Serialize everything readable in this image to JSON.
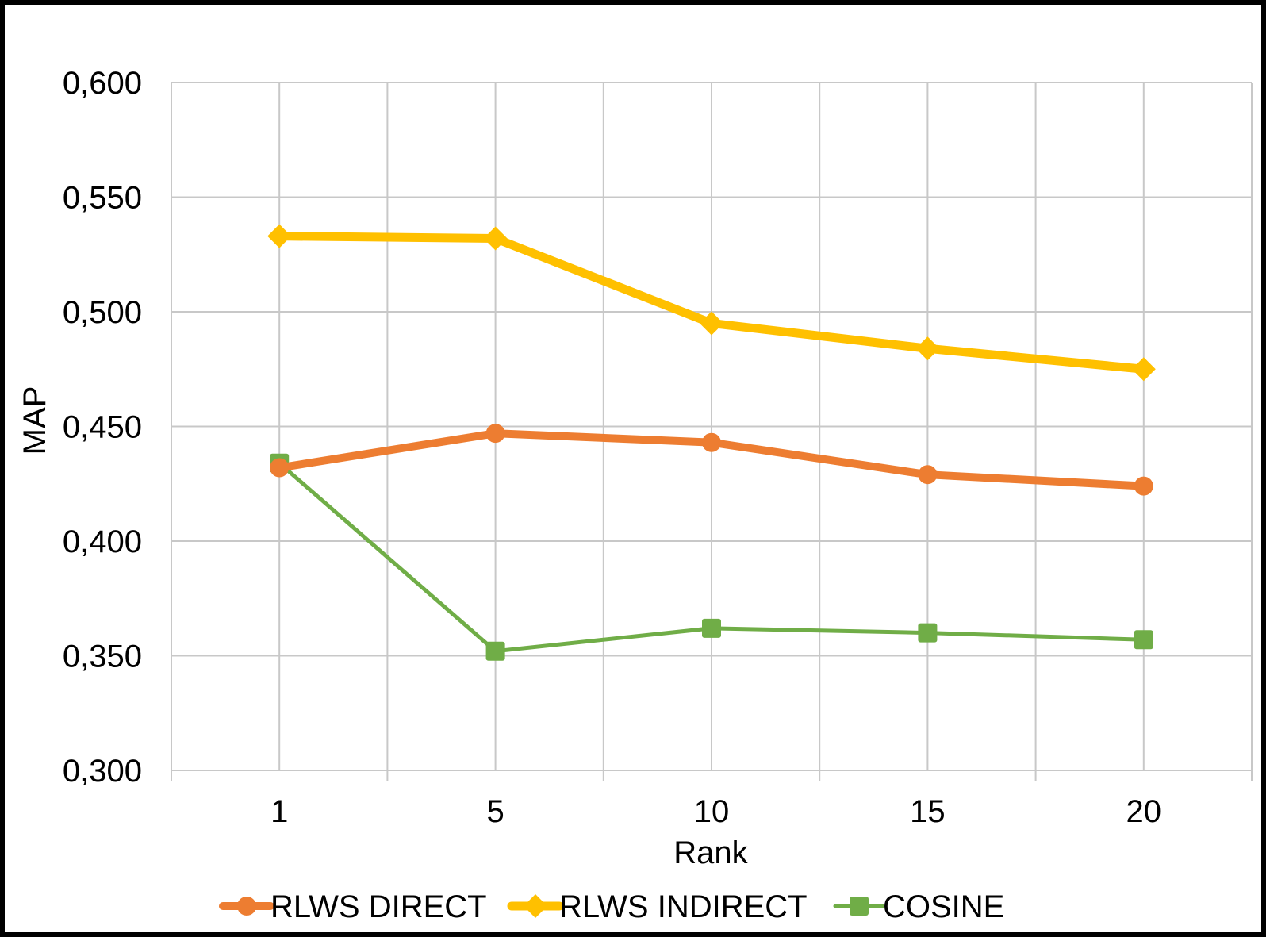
{
  "chart_data": {
    "type": "line",
    "title": "",
    "xlabel": "Rank",
    "ylabel": "MAP",
    "categories": [
      "1",
      "5",
      "10",
      "15",
      "20"
    ],
    "ylim": [
      0.3,
      0.6
    ],
    "yticks": [
      "0,300",
      "0,350",
      "0,400",
      "0,450",
      "0,500",
      "0,550",
      "0,600"
    ],
    "grid": true,
    "legend_position": "bottom",
    "series": [
      {
        "name": "RLWS DIRECT",
        "color": "#ED7D31",
        "marker": "circle",
        "values": [
          0.432,
          0.447,
          0.443,
          0.429,
          0.424
        ]
      },
      {
        "name": "RLWS INDIRECT",
        "color": "#FFC000",
        "marker": "diamond",
        "values": [
          0.533,
          0.532,
          0.495,
          0.484,
          0.475
        ]
      },
      {
        "name": "COSINE",
        "color": "#70AD47",
        "marker": "square",
        "values": [
          0.434,
          0.352,
          0.362,
          0.36,
          0.357
        ]
      }
    ]
  }
}
